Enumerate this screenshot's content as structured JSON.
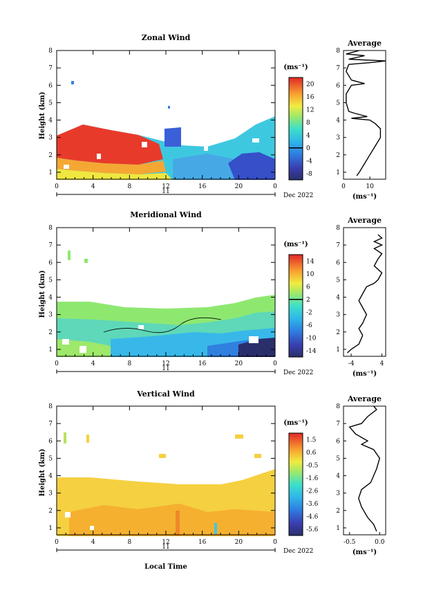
{
  "figure": {
    "x_axis_label": "Local Time",
    "date_label": "Dec 2022",
    "day_label": "11"
  },
  "colorbar_units": "(ms⁻¹)",
  "average_title": "Average",
  "y_label": "Height (km)",
  "chart_data": [
    {
      "type": "heatmap",
      "title": "Zonal Wind",
      "xlabel": "",
      "ylabel": "Height (km)",
      "x_ticks": [
        "0",
        "4",
        "8",
        "12",
        "16",
        "20",
        "0"
      ],
      "y_ticks": [
        "1",
        "2",
        "3",
        "4",
        "5",
        "6",
        "7",
        "8"
      ],
      "xlim_hours": [
        0,
        24
      ],
      "ylim_km": [
        0.6,
        8
      ],
      "colorbar": {
        "units": "(ms⁻¹)",
        "min": -10,
        "max": 22,
        "ticks": [
          "20",
          "16",
          "12",
          "8",
          "4",
          "0",
          "-4",
          "-8"
        ],
        "zero_tick": "0"
      },
      "profile": {
        "title": "Average",
        "x_ticks": [
          "0",
          "10"
        ],
        "xlim": [
          0,
          16
        ],
        "xlabel": "(ms⁻¹)",
        "points": [
          [
            5,
            0.8
          ],
          [
            6,
            1.0
          ],
          [
            8,
            1.5
          ],
          [
            10,
            2.0
          ],
          [
            12,
            2.5
          ],
          [
            14,
            3.0
          ],
          [
            14,
            3.5
          ],
          [
            12,
            3.8
          ],
          [
            10,
            4.0
          ],
          [
            3,
            4.1
          ],
          [
            9,
            4.2
          ],
          [
            4,
            4.4
          ],
          [
            2,
            4.5
          ],
          [
            1,
            5.0
          ],
          [
            1,
            5.5
          ],
          [
            3,
            6.0
          ],
          [
            8,
            6.1
          ],
          [
            3,
            6.3
          ],
          [
            1,
            6.8
          ],
          [
            2,
            7.2
          ],
          [
            10,
            7.3
          ],
          [
            16,
            7.4
          ],
          [
            2,
            7.5
          ],
          [
            8,
            7.7
          ],
          [
            1,
            7.8
          ],
          [
            6,
            8.0
          ]
        ]
      }
    },
    {
      "type": "heatmap",
      "title": "Meridional Wind",
      "xlabel": "",
      "ylabel": "Height (km)",
      "x_ticks": [
        "0",
        "4",
        "8",
        "12",
        "16",
        "20",
        "0"
      ],
      "y_ticks": [
        "1",
        "2",
        "3",
        "4",
        "5",
        "6",
        "7",
        "8"
      ],
      "xlim_hours": [
        0,
        24
      ],
      "ylim_km": [
        0.6,
        8
      ],
      "colorbar": {
        "units": "(ms⁻¹)",
        "min": -16,
        "max": 16,
        "ticks": [
          "14",
          "10",
          "6",
          "2",
          "-2",
          "-6",
          "-10",
          "-14"
        ],
        "zero_tick": "2"
      },
      "profile": {
        "title": "Average",
        "x_ticks": [
          "-4",
          "4"
        ],
        "xlim": [
          -6,
          5
        ],
        "xlabel": "(ms⁻¹)",
        "points": [
          [
            -5,
            0.8
          ],
          [
            -4,
            1.0
          ],
          [
            -2,
            1.3
          ],
          [
            -1,
            1.8
          ],
          [
            -2,
            2.2
          ],
          [
            -1,
            2.5
          ],
          [
            0,
            3.0
          ],
          [
            -1,
            3.4
          ],
          [
            -2,
            3.8
          ],
          [
            -1,
            4.2
          ],
          [
            0,
            4.6
          ],
          [
            2,
            4.8
          ],
          [
            3,
            5.0
          ],
          [
            4,
            5.4
          ],
          [
            2,
            5.8
          ],
          [
            3,
            6.2
          ],
          [
            4,
            6.5
          ],
          [
            2,
            6.8
          ],
          [
            4,
            7.0
          ],
          [
            2,
            7.2
          ],
          [
            4,
            7.4
          ],
          [
            3,
            7.6
          ]
        ]
      }
    },
    {
      "type": "heatmap",
      "title": "Vertical Wind",
      "xlabel": "Local Time",
      "ylabel": "Height (km)",
      "x_ticks": [
        "0",
        "4",
        "8",
        "12",
        "16",
        "20",
        "0"
      ],
      "y_ticks": [
        "1",
        "2",
        "3",
        "4",
        "5",
        "6",
        "7",
        "8"
      ],
      "xlim_hours": [
        0,
        24
      ],
      "ylim_km": [
        0.6,
        8
      ],
      "colorbar": {
        "units": "(ms⁻¹)",
        "min": -6.0,
        "max": 2.0,
        "ticks": [
          "1.5",
          "0.6",
          "-0.5",
          "-1.6",
          "-2.6",
          "-3.6",
          "-4.6",
          "-5.6"
        ]
      },
      "profile": {
        "title": "Average",
        "x_ticks": [
          "-0.5",
          "0.0"
        ],
        "xlim": [
          -0.6,
          0.1
        ],
        "xlabel": "(ms⁻¹)",
        "points": [
          [
            -0.05,
            0.8
          ],
          [
            -0.1,
            1.2
          ],
          [
            -0.2,
            1.6
          ],
          [
            -0.3,
            2.2
          ],
          [
            -0.35,
            2.7
          ],
          [
            -0.3,
            3.2
          ],
          [
            -0.15,
            3.6
          ],
          [
            -0.1,
            4.0
          ],
          [
            -0.05,
            4.4
          ],
          [
            0.0,
            5.0
          ],
          [
            -0.1,
            5.5
          ],
          [
            -0.3,
            5.8
          ],
          [
            -0.2,
            6.0
          ],
          [
            -0.4,
            6.4
          ],
          [
            -0.5,
            6.8
          ],
          [
            -0.3,
            7.0
          ],
          [
            -0.2,
            7.4
          ],
          [
            -0.05,
            7.8
          ],
          [
            -0.1,
            8.0
          ]
        ]
      }
    }
  ]
}
